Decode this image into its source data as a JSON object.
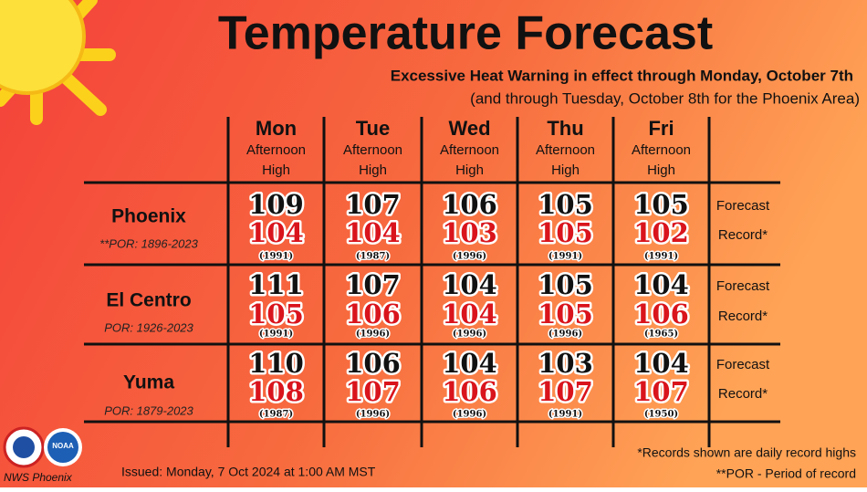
{
  "header": {
    "title": "Temperature Forecast",
    "subtitle": "Excessive Heat Warning in effect through Monday, October 7th",
    "note": "(and through Tuesday, October 8th for the Phoenix Area)"
  },
  "table": {
    "columns": [
      {
        "day": "Mon",
        "line1": "Afternoon",
        "line2": "High"
      },
      {
        "day": "Tue",
        "line1": "Afternoon",
        "line2": "High"
      },
      {
        "day": "Wed",
        "line1": "Afternoon",
        "line2": "High"
      },
      {
        "day": "Thu",
        "line1": "Afternoon",
        "line2": "High"
      },
      {
        "day": "Fri",
        "line1": "Afternoon",
        "line2": "High"
      }
    ],
    "rows": [
      {
        "city": "Phoenix",
        "por": "**POR: 1896-2023",
        "forecast_label": "Forecast",
        "record_label": "Record*",
        "cells": [
          {
            "forecast": 109,
            "record": 104,
            "year": "(1991)"
          },
          {
            "forecast": 107,
            "record": 104,
            "year": "(1987)"
          },
          {
            "forecast": 106,
            "record": 103,
            "year": "(1996)"
          },
          {
            "forecast": 105,
            "record": 105,
            "year": "(1991)"
          },
          {
            "forecast": 105,
            "record": 102,
            "year": "(1991)"
          }
        ]
      },
      {
        "city": "El Centro",
        "por": "POR: 1926-2023",
        "forecast_label": "Forecast",
        "record_label": "Record*",
        "cells": [
          {
            "forecast": 111,
            "record": 105,
            "year": "(1991)"
          },
          {
            "forecast": 107,
            "record": 106,
            "year": "(1996)"
          },
          {
            "forecast": 104,
            "record": 104,
            "year": "(1996)"
          },
          {
            "forecast": 105,
            "record": 105,
            "year": "(1996)"
          },
          {
            "forecast": 104,
            "record": 106,
            "year": "(1965)"
          }
        ]
      },
      {
        "city": "Yuma",
        "por": "POR: 1879-2023",
        "forecast_label": "Forecast",
        "record_label": "Record*",
        "cells": [
          {
            "forecast": 110,
            "record": 108,
            "year": "(1987)"
          },
          {
            "forecast": 106,
            "record": 107,
            "year": "(1996)"
          },
          {
            "forecast": 104,
            "record": 106,
            "year": "(1996)"
          },
          {
            "forecast": 103,
            "record": 107,
            "year": "(1991)"
          },
          {
            "forecast": 104,
            "record": 107,
            "year": "(1950)"
          }
        ]
      }
    ]
  },
  "footer": {
    "issued": "Issued: Monday, 7 Oct 2024 at 1:00 AM MST",
    "footnote1": "*Records shown are daily record highs",
    "footnote2": "**POR - Period of record",
    "office": "NWS Phoenix"
  }
}
